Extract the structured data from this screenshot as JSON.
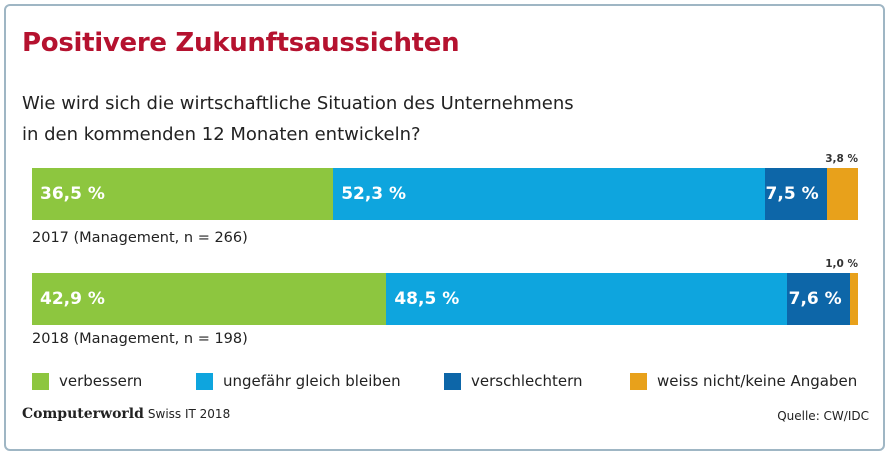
{
  "title": "Positivere Zukunftsaussichten",
  "subtitle_line1": "Wie wird sich die wirtschaftliche Situation des Unternehmens",
  "subtitle_line2": "in den kommenden 12 Monaten entwickeln?",
  "colors": {
    "verbessern": "#8dc63f",
    "gleich": "#0ea5de",
    "verschlechtern": "#0d66a8",
    "weissnicht": "#e8a11b",
    "title": "#b5122f"
  },
  "chart_data": {
    "type": "bar",
    "stacked": true,
    "orientation": "horizontal",
    "categories": [
      "2017 (Management, n = 266)",
      "2018 (Management, n = 198)"
    ],
    "series": [
      {
        "name": "verbessern",
        "values": [
          36.5,
          42.9
        ],
        "labels": [
          "36,5 %",
          "42,9 %"
        ]
      },
      {
        "name": "ungefähr gleich bleiben",
        "values": [
          52.3,
          48.5
        ],
        "labels": [
          "52,3 %",
          "48,5 %"
        ]
      },
      {
        "name": "verschlechtern",
        "values": [
          7.5,
          7.6
        ],
        "labels": [
          "7,5 %",
          "7,6 %"
        ]
      },
      {
        "name": "weiss nicht/keine Angaben",
        "values": [
          3.8,
          1.0
        ],
        "labels": [
          "3,8 %",
          "1,0 %"
        ]
      }
    ],
    "legend_position": "bottom"
  },
  "legend": [
    {
      "label": "verbessern",
      "color": "#8dc63f"
    },
    {
      "label": "ungefähr gleich bleiben",
      "color": "#0ea5de"
    },
    {
      "label": "verschlechtern",
      "color": "#0d66a8"
    },
    {
      "label": "weiss nicht/keine Angaben",
      "color": "#e8a11b"
    }
  ],
  "footer": {
    "brand": "Computerworld",
    "edition": "Swiss IT 2018",
    "source": "Quelle: CW/IDC"
  }
}
